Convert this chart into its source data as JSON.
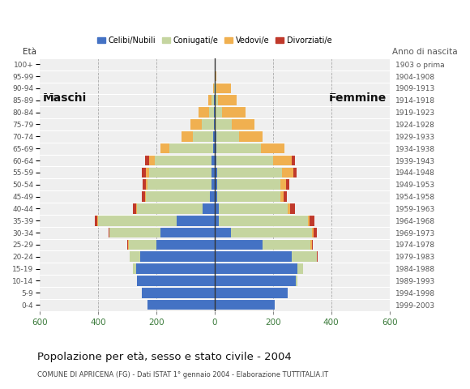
{
  "age_groups": [
    "0-4",
    "5-9",
    "10-14",
    "15-19",
    "20-24",
    "25-29",
    "30-34",
    "35-39",
    "40-44",
    "45-49",
    "50-54",
    "55-59",
    "60-64",
    "65-69",
    "70-74",
    "75-79",
    "80-84",
    "85-89",
    "90-94",
    "95-99",
    "100+"
  ],
  "birth_years": [
    "1999-2003",
    "1994-1998",
    "1989-1993",
    "1984-1988",
    "1979-1983",
    "1974-1978",
    "1969-1973",
    "1964-1968",
    "1959-1963",
    "1954-1958",
    "1949-1953",
    "1944-1948",
    "1939-1943",
    "1934-1938",
    "1929-1933",
    "1924-1928",
    "1919-1923",
    "1914-1918",
    "1909-1913",
    "1904-1908",
    "1903 o prima"
  ],
  "male": {
    "celibi": [
      230,
      250,
      265,
      270,
      255,
      200,
      185,
      130,
      40,
      15,
      10,
      10,
      10,
      5,
      4,
      3,
      2,
      2,
      0,
      0,
      0
    ],
    "coniugati": [
      0,
      0,
      0,
      10,
      35,
      95,
      175,
      270,
      225,
      220,
      220,
      215,
      195,
      150,
      70,
      40,
      18,
      8,
      2,
      0,
      0
    ],
    "vedovi": [
      0,
      0,
      0,
      0,
      0,
      2,
      2,
      2,
      3,
      3,
      5,
      10,
      20,
      30,
      40,
      40,
      35,
      12,
      3,
      0,
      0
    ],
    "divorziati": [
      0,
      0,
      0,
      0,
      2,
      2,
      2,
      10,
      12,
      12,
      12,
      15,
      12,
      0,
      0,
      0,
      0,
      0,
      0,
      0,
      0
    ]
  },
  "female": {
    "nubili": [
      205,
      250,
      280,
      285,
      265,
      165,
      55,
      15,
      15,
      10,
      10,
      10,
      5,
      5,
      5,
      3,
      2,
      2,
      0,
      0,
      0
    ],
    "coniugate": [
      0,
      0,
      5,
      18,
      85,
      165,
      280,
      305,
      235,
      215,
      215,
      220,
      195,
      155,
      80,
      55,
      25,
      10,
      5,
      0,
      0
    ],
    "vedove": [
      0,
      0,
      0,
      0,
      2,
      3,
      5,
      5,
      8,
      12,
      20,
      40,
      65,
      80,
      80,
      80,
      80,
      65,
      50,
      5,
      0
    ],
    "divorziate": [
      0,
      0,
      0,
      0,
      2,
      3,
      12,
      18,
      18,
      12,
      12,
      12,
      12,
      0,
      0,
      0,
      0,
      0,
      0,
      0,
      0
    ]
  },
  "colors": {
    "celibi": "#4472C4",
    "coniugati": "#C5D5A0",
    "vedovi": "#F0B050",
    "divorziati": "#C0392B"
  },
  "title": "Popolazione per età, sesso e stato civile - 2004",
  "subtitle": "COMUNE DI APRICENA (FG) - Dati ISTAT 1° gennaio 2004 - Elaborazione TUTTITALIA.IT",
  "label_maschi": "Maschi",
  "label_femmine": "Femmine",
  "label_eta": "Età",
  "label_anno": "Anno di nascita",
  "xlim": 600,
  "background_color": "#ffffff",
  "plot_bg_color": "#efefef",
  "legend_labels": [
    "Celibi/Nubili",
    "Coniugati/e",
    "Vedovi/e",
    "Divorziati/e"
  ]
}
